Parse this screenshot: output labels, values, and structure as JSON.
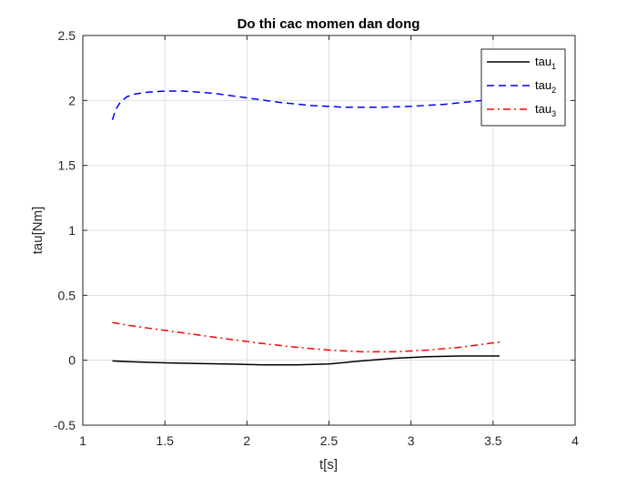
{
  "chart_data": {
    "type": "line",
    "title": "Do thi cac momen dan dong",
    "xlabel": "t[s]",
    "ylabel": "tau[Nm]",
    "xlim": [
      1,
      4
    ],
    "ylim": [
      -0.5,
      2.5
    ],
    "xticks": [
      "1",
      "1.5",
      "2",
      "2.5",
      "3",
      "3.5",
      "4"
    ],
    "yticks": [
      "-0.5",
      "0",
      "0.5",
      "1",
      "1.5",
      "2",
      "2.5"
    ],
    "grid": true,
    "legend_position": "top-right",
    "series": [
      {
        "name": "tau",
        "subscript": "1",
        "color": "#000000",
        "style": "solid",
        "x": [
          1.18,
          1.3,
          1.5,
          1.7,
          1.9,
          2.1,
          2.3,
          2.5,
          2.7,
          2.9,
          3.1,
          3.3,
          3.54
        ],
        "y": [
          -0.005,
          -0.012,
          -0.02,
          -0.025,
          -0.03,
          -0.035,
          -0.036,
          -0.028,
          -0.005,
          0.015,
          0.028,
          0.033,
          0.033
        ]
      },
      {
        "name": "tau",
        "subscript": "2",
        "color": "#0000ff",
        "style": "dashed",
        "x": [
          1.18,
          1.2,
          1.23,
          1.27,
          1.32,
          1.4,
          1.5,
          1.6,
          1.8,
          2.0,
          2.2,
          2.4,
          2.6,
          2.8,
          3.0,
          3.2,
          3.4,
          3.54
        ],
        "y": [
          1.85,
          1.93,
          1.99,
          2.03,
          2.05,
          2.065,
          2.072,
          2.073,
          2.055,
          2.02,
          1.985,
          1.96,
          1.948,
          1.948,
          1.955,
          1.97,
          1.995,
          2.015
        ]
      },
      {
        "name": "tau",
        "subscript": "3",
        "color": "#ff0000",
        "style": "dashdot",
        "x": [
          1.18,
          1.3,
          1.5,
          1.7,
          1.9,
          2.1,
          2.3,
          2.5,
          2.7,
          2.9,
          3.1,
          3.3,
          3.54
        ],
        "y": [
          0.29,
          0.265,
          0.23,
          0.195,
          0.16,
          0.128,
          0.1,
          0.078,
          0.065,
          0.065,
          0.078,
          0.1,
          0.14
        ]
      }
    ]
  }
}
